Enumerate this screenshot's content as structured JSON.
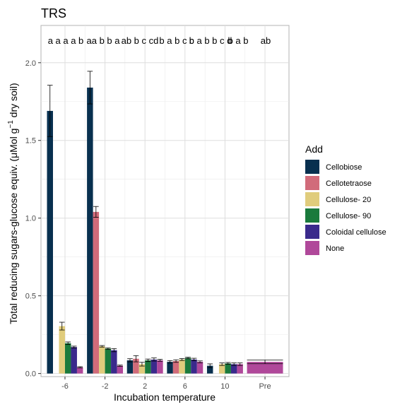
{
  "chart_data": {
    "type": "bar",
    "title": "TRS",
    "xlabel": "Incubation temperature",
    "ylabel_main": "Total reducing sugars-glucose equiv. (μMol g",
    "ylabel_sup": "−1",
    "ylabel_tail": " dry soil)",
    "ylim": [
      -0.02,
      2.24
    ],
    "yticks": [
      "0.0",
      "0.5",
      "1.0",
      "1.5",
      "2.0"
    ],
    "ytick_values": [
      0,
      0.5,
      1.0,
      1.5,
      2.0
    ],
    "categories": [
      "-6",
      "-2",
      "2",
      "6",
      "10",
      "Pre"
    ],
    "legend": {
      "title": "Add",
      "placement": "right",
      "entries": [
        "Cellobiose",
        "Cellotetraose",
        "Cellulose- 20",
        "Cellulose- 90",
        "Coloidal cellulose",
        "None"
      ]
    },
    "series": [
      {
        "name": "Cellobiose",
        "color": "#08304f",
        "values": [
          1.69,
          1.84,
          0.085,
          0.075,
          0.05,
          null
        ],
        "errors": [
          0.165,
          0.105,
          0.01,
          0.008,
          0.012,
          null
        ]
      },
      {
        "name": "Cellotetraose",
        "color": "#d16b7a",
        "values": [
          null,
          1.04,
          0.095,
          0.08,
          null,
          null
        ],
        "errors": [
          null,
          0.035,
          0.02,
          0.008,
          null,
          null
        ]
      },
      {
        "name": "Cellulose- 20",
        "color": "#e0cc7c",
        "values": [
          0.305,
          0.175,
          0.06,
          0.09,
          0.06,
          null
        ],
        "errors": [
          0.025,
          0.005,
          0.012,
          0.006,
          0.008,
          null
        ]
      },
      {
        "name": "Cellulose- 90",
        "color": "#1a7a3c",
        "values": [
          0.195,
          0.16,
          0.085,
          0.1,
          0.065,
          null
        ],
        "errors": [
          0.008,
          0.005,
          0.008,
          0.005,
          0.006,
          null
        ]
      },
      {
        "name": "Coloidal cellulose",
        "color": "#3a2a8c",
        "values": [
          0.17,
          0.15,
          0.09,
          0.09,
          0.06,
          null
        ],
        "errors": [
          0.006,
          0.01,
          0.01,
          0.008,
          0.008,
          null
        ]
      },
      {
        "name": "None",
        "color": "#b0489a",
        "values": [
          0.04,
          0.05,
          0.085,
          0.075,
          0.06,
          0.075
        ],
        "errors": [
          0.004,
          0.004,
          0.006,
          0.006,
          0.008,
          0.012
        ]
      }
    ],
    "letter_annotations": [
      "a a a a b",
      "aa b b a",
      "ab b c cd",
      "b a b c c",
      "b a b b c d",
      "b a b",
      "ab"
    ],
    "grid": true
  }
}
